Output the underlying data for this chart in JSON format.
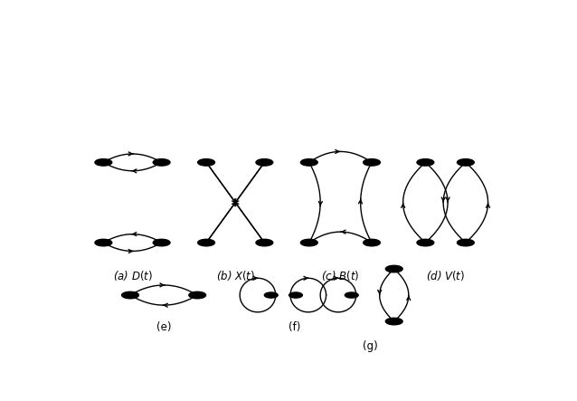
{
  "node_color": "#000000",
  "line_color": "#000000",
  "label_fontsize": 8.5,
  "figsize": [
    6.38,
    4.43
  ],
  "dpi": 100,
  "labels": {
    "a": "(a) $D(t)$",
    "b": "(b) $X(t)$",
    "c": "(c) $B(t)$",
    "d": "(d) $V(t)$",
    "e": "(e)",
    "f": "(f)",
    "g": "(g)"
  }
}
